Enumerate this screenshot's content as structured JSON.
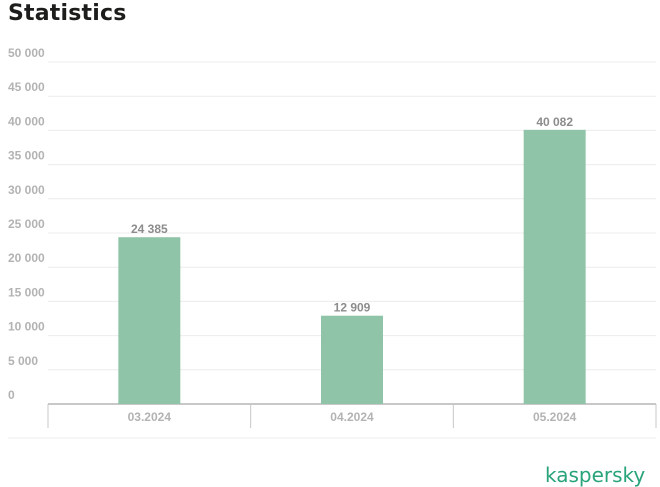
{
  "title": "Statistics",
  "brand": "kaspersky",
  "colors": {
    "bar": "#8fc4a8",
    "grid": "#ececec",
    "axis": "#c8c8c8",
    "tick_text": "#b3b3b3",
    "value_text": "#8c8c8c",
    "brand": "#29a37a"
  },
  "chart_data": {
    "type": "bar",
    "title": "Statistics",
    "categories": [
      "03.2024",
      "04.2024",
      "05.2024"
    ],
    "values": [
      24385,
      12909,
      40082
    ],
    "value_labels": [
      "24 385",
      "12 909",
      "40 082"
    ],
    "ylim": [
      0,
      50000
    ],
    "yticks": [
      0,
      5000,
      10000,
      15000,
      20000,
      25000,
      30000,
      35000,
      40000,
      45000,
      50000
    ],
    "ytick_labels": [
      "0",
      "5 000",
      "10 000",
      "15 000",
      "20 000",
      "25 000",
      "30 000",
      "35 000",
      "40 000",
      "45 000",
      "50 000"
    ],
    "xlabel": "",
    "ylabel": "",
    "grid": true,
    "legend": "none"
  }
}
